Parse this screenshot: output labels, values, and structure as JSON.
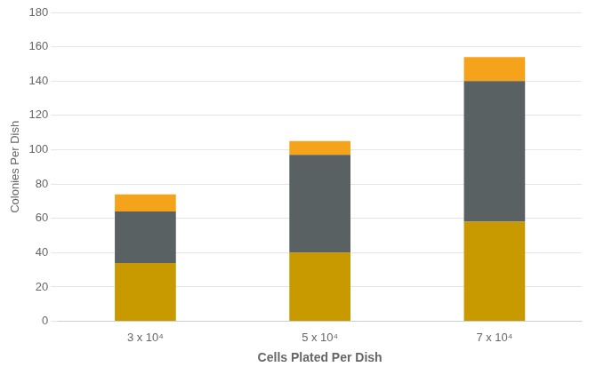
{
  "chart_data": {
    "type": "bar",
    "stacked": true,
    "grid": true,
    "xlabel": "Cells Plated Per Dish",
    "ylabel": "Colonies Per Dish",
    "categories": [
      "3 x 10⁴",
      "5 x 10⁴",
      "7 x 10⁴"
    ],
    "series": [
      {
        "color": "#C89A00",
        "values": [
          34,
          40,
          58
        ]
      },
      {
        "color": "#596163",
        "values": [
          30,
          57,
          82
        ]
      },
      {
        "color": "#F5A31A",
        "values": [
          10,
          8,
          14
        ]
      }
    ],
    "ylim": [
      0,
      180
    ],
    "yticks": [
      0,
      20,
      40,
      60,
      80,
      100,
      120,
      140,
      160,
      180
    ]
  }
}
